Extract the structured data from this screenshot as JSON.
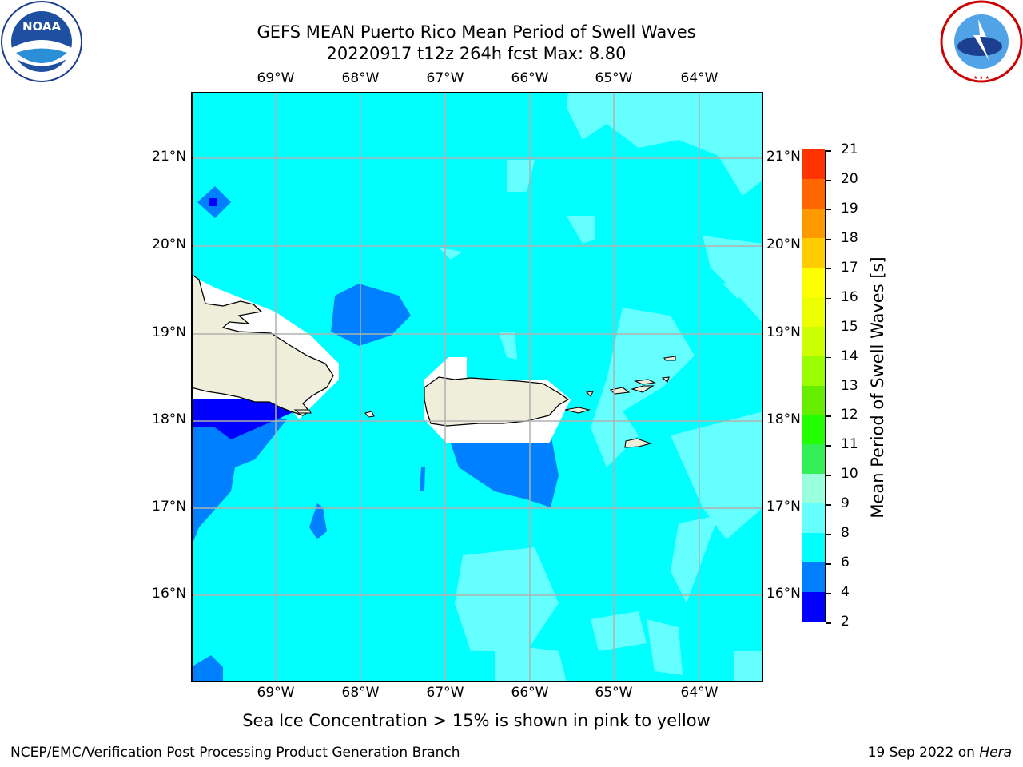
{
  "title": {
    "line1": "GEFS MEAN Puerto Rico Mean Period of Swell Waves",
    "line2": "20220917 t12z 264h fcst   Max: 8.80"
  },
  "logos": {
    "left": "noaa-logo",
    "right": "nws-logo",
    "left_text": "NOAA",
    "right_text": "NATIONAL WEATHER SERVICE"
  },
  "map": {
    "lon_labels": [
      "69°W",
      "68°W",
      "67°W",
      "66°W",
      "65°W",
      "64°W"
    ],
    "lat_labels": [
      "21°N",
      "20°N",
      "19°N",
      "18°N",
      "17°N",
      "16°N"
    ],
    "colors": {
      "ocean": "#00ffff",
      "water_light": "#66ffff",
      "blue": "#0080ff",
      "deep": "#0000ff",
      "land": "#eeeedb",
      "grid": "#b0b0b0"
    }
  },
  "colorbar": {
    "label": "Mean Period of Swell Waves [s]",
    "ticks": [
      "2",
      "4",
      "6",
      "8",
      "9",
      "10",
      "11",
      "12",
      "13",
      "14",
      "15",
      "16",
      "17",
      "18",
      "19",
      "20",
      "21"
    ],
    "colors": [
      "#0000ff",
      "#0080ff",
      "#00ffff",
      "#66ffff",
      "#99ffdd",
      "#33ee55",
      "#22ff00",
      "#66ee00",
      "#99ff00",
      "#ccff00",
      "#eeff00",
      "#ffff00",
      "#ffcc00",
      "#ff9900",
      "#ff6600",
      "#ff3300",
      "#ff0000"
    ]
  },
  "note": "Sea Ice Concentration > 15% is shown in pink to yellow",
  "footer": {
    "left": "NCEP/EMC/Verification Post Processing Product Generation Branch",
    "right_date": "19 Sep 2022 on",
    "right_host": "Hera"
  }
}
